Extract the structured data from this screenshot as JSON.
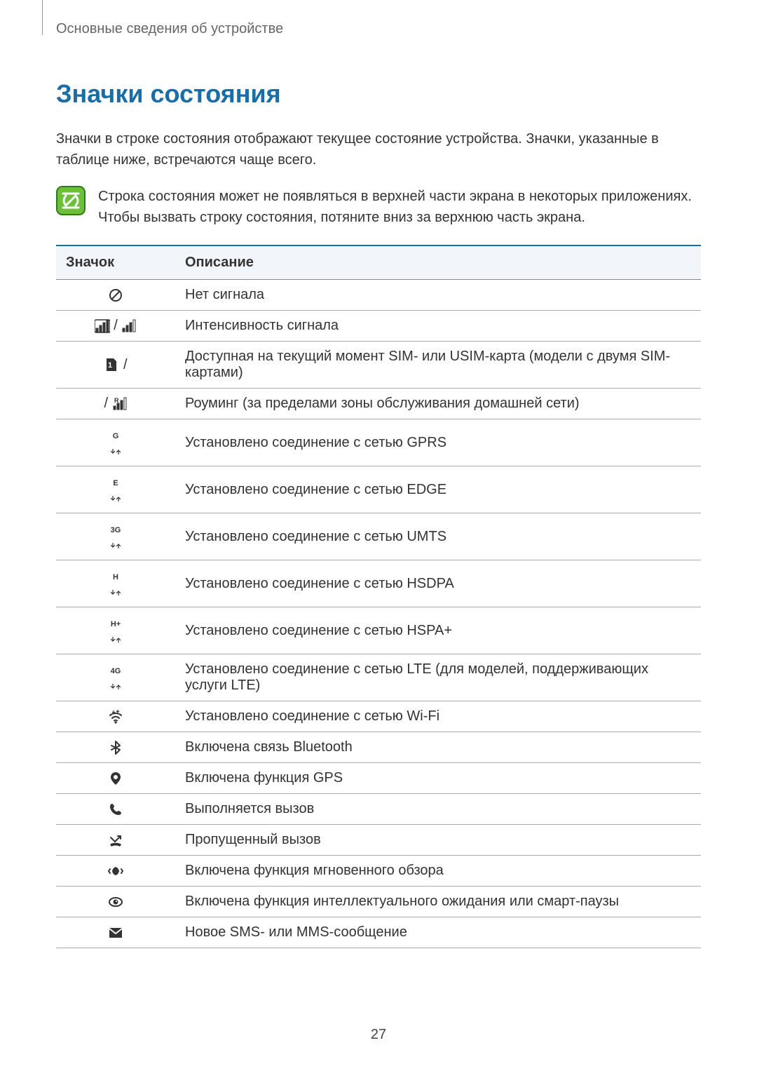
{
  "breadcrumb": "Основные сведения об устройстве",
  "heading": {
    "text": "Значки состояния",
    "color": "#1a6ea8"
  },
  "intro": "Значки в строке состояния отображают текущее состояние устройства. Значки, указанные в таблице ниже, встречаются чаще всего.",
  "note": {
    "text": "Строка состояния может не появляться в верхней части экрана в некоторых приложениях. Чтобы вызвать строку состояния, потяните вниз за верхнюю часть экрана.",
    "icon_bg": "#6bbf3a",
    "icon_stroke": "#2f7a18"
  },
  "table": {
    "header_bg": "#f2f6fa",
    "border_top_color": "#1a6ea8",
    "row_border_color": "#aaaaaa",
    "columns": [
      "Значок",
      "Описание"
    ],
    "rows": [
      {
        "icon": "no-signal",
        "desc": "Нет сигнала"
      },
      {
        "icon": "signal-strength",
        "desc": "Интенсивность сигнала"
      },
      {
        "icon": "sim-card",
        "desc": "Доступная на текущий момент SIM- или USIM-карта (модели с двумя SIM-картами)"
      },
      {
        "icon": "roaming",
        "desc": "Роуминг (за пределами зоны обслуживания домашней сети)"
      },
      {
        "icon": "gprs",
        "label": "G",
        "desc": "Установлено соединение с сетью GPRS"
      },
      {
        "icon": "edge",
        "label": "E",
        "desc": "Установлено соединение с сетью EDGE"
      },
      {
        "icon": "umts",
        "label": "3G",
        "desc": "Установлено соединение с сетью UMTS"
      },
      {
        "icon": "hsdpa",
        "label": "H",
        "desc": "Установлено соединение с сетью HSDPA"
      },
      {
        "icon": "hspa+",
        "label": "H+",
        "desc": "Установлено соединение с сетью HSPA+"
      },
      {
        "icon": "lte",
        "label": "4G",
        "desc": "Установлено соединение с сетью LTE (для моделей, поддерживающих услуги LTE)"
      },
      {
        "icon": "wifi",
        "desc": "Установлено соединение с сетью Wi-Fi"
      },
      {
        "icon": "bluetooth",
        "desc": "Включена связь Bluetooth"
      },
      {
        "icon": "gps",
        "desc": "Включена функция GPS"
      },
      {
        "icon": "call",
        "desc": "Выполняется вызов"
      },
      {
        "icon": "missed-call",
        "desc": "Пропущенный вызов"
      },
      {
        "icon": "quick-glance",
        "desc": "Включена функция мгновенного обзора"
      },
      {
        "icon": "smart-stay",
        "desc": "Включена функция интеллектуального ожидания или смарт-паузы"
      },
      {
        "icon": "sms",
        "desc": "Новое SMS- или MMS-сообщение"
      }
    ]
  },
  "page_number": "27"
}
